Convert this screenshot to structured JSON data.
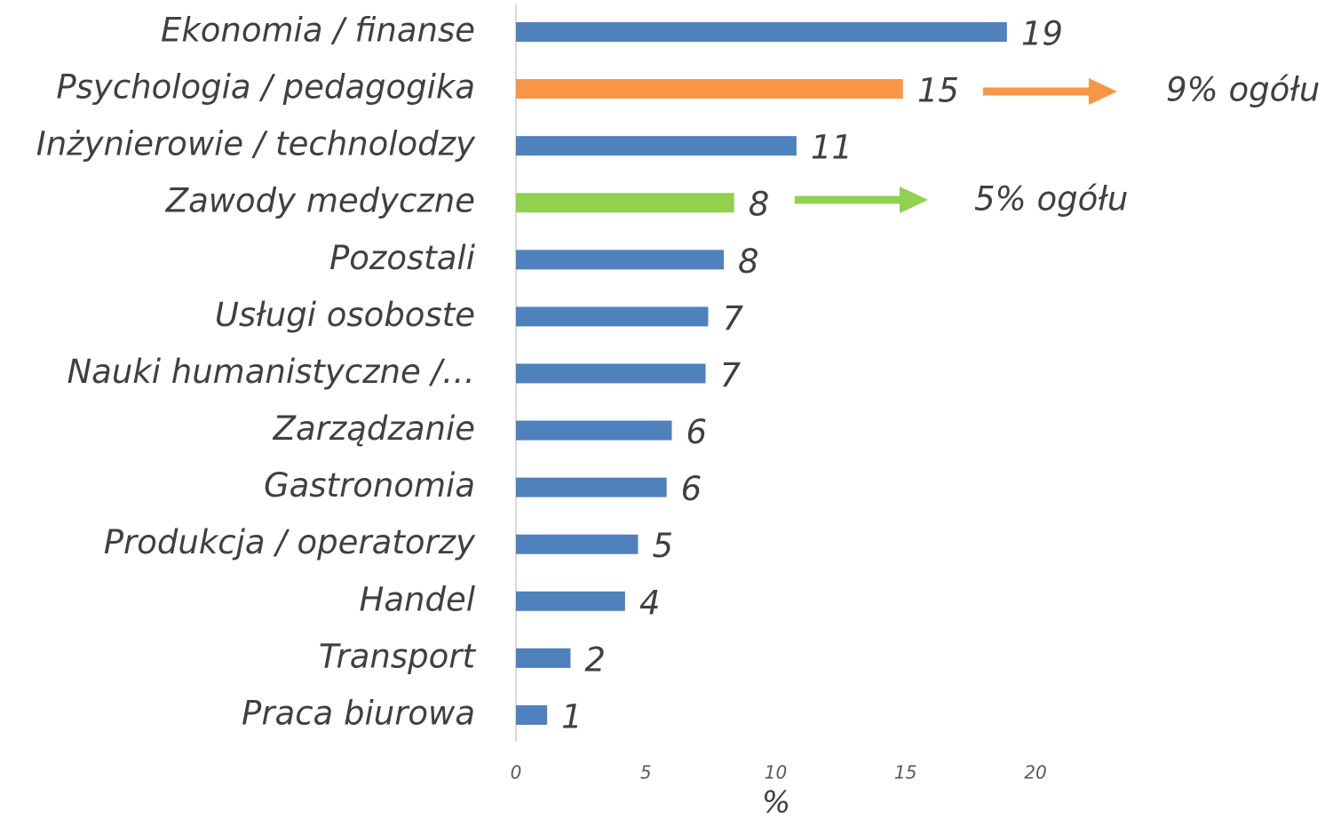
{
  "chart_data": {
    "type": "hbar",
    "categories": [
      "Ekonomia / finanse",
      "Psychologia / pedagogika",
      "Inżynierowie / technolodzy",
      "Zawody medyczne",
      "Pozostali",
      "Usługi osoboste",
      "Nauki humanistyczne /…",
      "Zarządzanie",
      "Gastronomia",
      "Produkcja / operatorzy",
      "Handel",
      "Transport",
      "Praca biurowa"
    ],
    "values": [
      18.9,
      14.9,
      10.8,
      8.4,
      8.0,
      7.4,
      7.3,
      6.0,
      5.8,
      4.7,
      4.2,
      2.1,
      1.2
    ],
    "value_labels": [
      "19",
      "15",
      "11",
      "8",
      "8",
      "7",
      "7",
      "6",
      "6",
      "5",
      "4",
      "2",
      "1"
    ],
    "colors": [
      "#4f81bd",
      "#f79646",
      "#4f81bd",
      "#92d050",
      "#4f81bd",
      "#4f81bd",
      "#4f81bd",
      "#4f81bd",
      "#4f81bd",
      "#4f81bd",
      "#4f81bd",
      "#4f81bd",
      "#4f81bd"
    ],
    "xlim": [
      0,
      20
    ],
    "xticks": [
      0,
      5,
      10,
      15,
      20
    ],
    "x_label": "%",
    "annotations": [
      "9% ogółu",
      "5% ogółu"
    ]
  }
}
